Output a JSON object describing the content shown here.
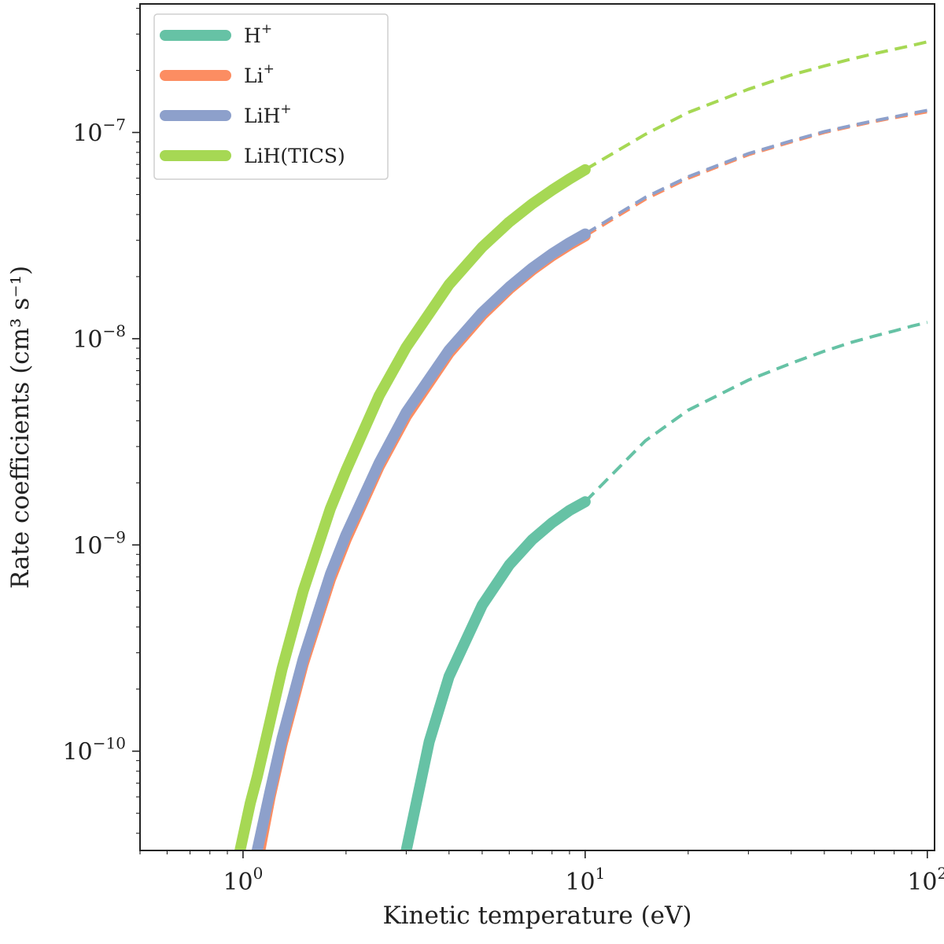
{
  "chart_data": {
    "type": "line",
    "title": "",
    "xlabel": "Kinetic temperature (eV)",
    "ylabel": "Rate coefficients (cm³ s⁻¹)",
    "xscale": "log",
    "yscale": "log",
    "xlim": [
      0.5,
      105
    ],
    "ylim": [
      3.3e-11,
      4.2e-07
    ],
    "grid": false,
    "legend_position": "top-left",
    "x_tick_labels": [
      {
        "base": "10",
        "exp": "0",
        "value": 1
      },
      {
        "base": "10",
        "exp": "1",
        "value": 10
      },
      {
        "base": "10",
        "exp": "2",
        "value": 100
      }
    ],
    "y_tick_labels": [
      {
        "base": "10",
        "exp": "−10",
        "value": 1e-10
      },
      {
        "base": "10",
        "exp": "−9",
        "value": 1e-09
      },
      {
        "base": "10",
        "exp": "−8",
        "value": 1e-08
      },
      {
        "base": "10",
        "exp": "−7",
        "value": 1e-07
      }
    ],
    "series": [
      {
        "name": "H",
        "name_sup": "+",
        "color": "#66c2a5",
        "solid": {
          "x": [
            3.0,
            3.5,
            4.0,
            5.0,
            6.0,
            7.0,
            8.0,
            9.0,
            10.0
          ],
          "y": [
            3.3e-11,
            1.11e-10,
            2.3e-10,
            5.1e-10,
            8e-10,
            1.06e-09,
            1.28e-09,
            1.47e-09,
            1.62e-09
          ]
        },
        "dashed": {
          "x": [
            10,
            15,
            20,
            30,
            40,
            50,
            60,
            70,
            80,
            90,
            100
          ],
          "y": [
            1.62e-09,
            3.2e-09,
            4.5e-09,
            6.3e-09,
            7.6e-09,
            8.7e-09,
            9.6e-09,
            1.03e-08,
            1.09e-08,
            1.15e-08,
            1.2e-08
          ]
        }
      },
      {
        "name": "Li",
        "name_sup": "+",
        "color": "#fc8d62",
        "solid": {
          "x": [
            1.12,
            1.2,
            1.3,
            1.5,
            1.8,
            2.0,
            2.5,
            3.0,
            4.0,
            5.0,
            6.0,
            7.0,
            8.0,
            9.0,
            10.0
          ],
          "y": [
            3.3e-11,
            6e-11,
            1.08e-10,
            2.65e-10,
            6.8e-10,
            1.06e-09,
            2.4e-09,
            4.2e-09,
            8.5e-09,
            1.3e-08,
            1.74e-08,
            2.15e-08,
            2.52e-08,
            2.85e-08,
            3.15e-08
          ]
        },
        "dashed": {
          "x": [
            10,
            15,
            20,
            30,
            40,
            50,
            60,
            70,
            80,
            90,
            100
          ],
          "y": [
            3.15e-08,
            4.75e-08,
            6e-08,
            7.8e-08,
            9e-08,
            1e-07,
            1.07e-07,
            1.13e-07,
            1.18e-07,
            1.22e-07,
            1.26e-07
          ]
        }
      },
      {
        "name": "LiH",
        "name_sup": "+",
        "color": "#8da0cb",
        "solid": {
          "x": [
            1.1,
            1.2,
            1.3,
            1.5,
            1.8,
            2.0,
            2.5,
            3.0,
            4.0,
            5.0,
            6.0,
            7.0,
            8.0,
            9.0,
            10.0
          ],
          "y": [
            3.3e-11,
            6.4e-11,
            1.15e-10,
            2.8e-10,
            7.2e-10,
            1.12e-09,
            2.5e-09,
            4.4e-09,
            8.8e-09,
            1.34e-08,
            1.78e-08,
            2.2e-08,
            2.58e-08,
            2.92e-08,
            3.22e-08
          ]
        },
        "dashed": {
          "x": [
            10,
            15,
            20,
            30,
            40,
            50,
            60,
            70,
            80,
            90,
            100
          ],
          "y": [
            3.22e-08,
            4.85e-08,
            6.1e-08,
            7.9e-08,
            9.1e-08,
            1.01e-07,
            1.08e-07,
            1.14e-07,
            1.19e-07,
            1.24e-07,
            1.28e-07
          ]
        }
      },
      {
        "name": "LiH(TICS)",
        "name_sup": "",
        "color": "#a6d854",
        "solid": {
          "x": [
            0.98,
            1.05,
            1.1,
            1.2,
            1.3,
            1.5,
            1.8,
            2.0,
            2.5,
            3.0,
            4.0,
            5.0,
            6.0,
            7.0,
            8.0,
            9.0,
            10.0
          ],
          "y": [
            3.3e-11,
            5.6e-11,
            7.5e-11,
            1.4e-10,
            2.5e-10,
            6e-10,
            1.5e-09,
            2.3e-09,
            5.3e-09,
            9.1e-09,
            1.83e-08,
            2.78e-08,
            3.68e-08,
            4.5e-08,
            5.25e-08,
            5.95e-08,
            6.6e-08
          ]
        },
        "dashed": {
          "x": [
            10,
            15,
            20,
            30,
            40,
            50,
            60,
            70,
            80,
            90,
            100
          ],
          "y": [
            6.6e-08,
            9.8e-08,
            1.25e-07,
            1.62e-07,
            1.9e-07,
            2.1e-07,
            2.27e-07,
            2.41e-07,
            2.53e-07,
            2.64e-07,
            2.75e-07
          ]
        }
      }
    ]
  }
}
